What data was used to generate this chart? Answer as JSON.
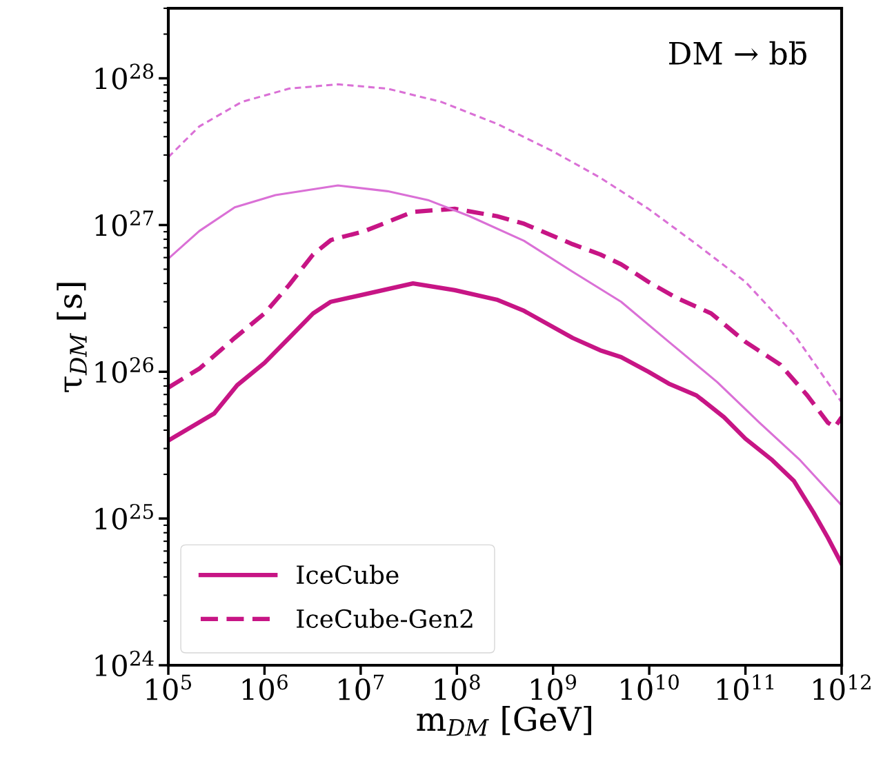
{
  "chart_data": {
    "type": "line",
    "xlabel": "m$_{DM}$ [GeV]",
    "ylabel": "τ$_{DM}$ [s]",
    "log": "xy",
    "xlim": [
      100000.0,
      1000000000000.0
    ],
    "ylim": [
      1e+24,
      3e+28
    ],
    "xticks": [
      {
        "value": 100000.0,
        "label": "10$^{5}$"
      },
      {
        "value": 1000000.0,
        "label": "10$^{6}$"
      },
      {
        "value": 10000000.0,
        "label": "10$^{7}$"
      },
      {
        "value": 100000000.0,
        "label": "10$^{8}$"
      },
      {
        "value": 1000000000.0,
        "label": "10$^{9}$"
      },
      {
        "value": 10000000000.0,
        "label": "10$^{10}$"
      },
      {
        "value": 100000000000.0,
        "label": "10$^{11}$"
      },
      {
        "value": 1000000000000.0,
        "label": "10$^{12}$"
      }
    ],
    "yticks": [
      {
        "value": 1e+24,
        "label": "10$^{24}$"
      },
      {
        "value": 1e+25,
        "label": "10$^{25}$"
      },
      {
        "value": 1e+26,
        "label": "10$^{26}$"
      },
      {
        "value": 1e+27,
        "label": "10$^{27}$"
      },
      {
        "value": 1e+28,
        "label": "10$^{28}$"
      }
    ],
    "annotations": [
      "DM → bb̄"
    ],
    "legend": "bottom left",
    "grid": false,
    "series": [
      {
        "name": "IceCube",
        "color": "#c71585",
        "line_style": "solid",
        "x": [
          100000.0,
          300000.0,
          520000.0,
          1000000.0,
          1800000.0,
          3200000.0,
          4900000.0,
          9500000.0,
          35000000.0,
          95000000.0,
          260000000.0,
          500000000.0,
          1600000000.0,
          3100000000.0,
          5100000000.0,
          9800000000.0,
          16000000000.0,
          31000000000.0,
          60000000000.0,
          100000000000.0,
          190000000000.0,
          320000000000.0,
          510000000000.0,
          720000000000.0,
          1000000000000.0
        ],
        "values": [
          3.4e+25,
          5.2e+25,
          8.1e+25,
          1.15e+26,
          1.7e+26,
          2.5e+26,
          3e+26,
          3.3e+26,
          4e+26,
          3.6e+26,
          3.1e+26,
          2.6e+26,
          1.7e+26,
          1.4e+26,
          1.26e+26,
          1e+26,
          8.3e+25,
          6.9e+25,
          4.9e+25,
          3.5e+25,
          2.5e+25,
          1.8e+25,
          1.1e+25,
          7.4e+24,
          4.9e+24
        ]
      },
      {
        "name": "IceCube-Gen2",
        "color": "#c71585",
        "line_style": "dashed",
        "x": [
          100000.0,
          210000.0,
          490000.0,
          1000000.0,
          1800000.0,
          3200000.0,
          4900000.0,
          11000000.0,
          35000000.0,
          95000000.0,
          260000000.0,
          500000000.0,
          1600000000.0,
          3100000000.0,
          5100000000.0,
          9800000000.0,
          19000000000.0,
          44000000000.0,
          100000000000.0,
          230000000000.0,
          440000000000.0,
          720000000000.0,
          850000000000.0,
          1000000000000.0
        ],
        "values": [
          7.8e+25,
          1.05e+26,
          1.7e+26,
          2.5e+26,
          3.9e+26,
          6.3e+26,
          7.9e+26,
          9.1e+26,
          1.23e+27,
          1.29e+27,
          1.15e+27,
          1.02e+27,
          7.4e+26,
          6.3e+26,
          5.4e+26,
          4.1e+26,
          3.2e+26,
          2.5e+26,
          1.6e+26,
          1.12e+26,
          6.9e+25,
          4.5e+25,
          4.2e+25,
          4.9e+25
        ]
      },
      {
        "color": "#da70d6",
        "line_style": "solid",
        "x": [
          100000.0,
          210000.0,
          490000.0,
          1300000.0,
          5800000.0,
          19000000.0,
          50000000.0,
          135000000.0,
          500000000.0,
          1600000000.0,
          5100000000.0,
          16000000000.0,
          51000000000.0,
          140000000000.0,
          370000000000.0,
          1000000000000.0
        ],
        "values": [
          5.9e+26,
          9.1e+26,
          1.32e+27,
          1.6e+27,
          1.86e+27,
          1.7e+27,
          1.48e+27,
          1.15e+27,
          7.8e+26,
          4.8e+26,
          3e+26,
          1.6e+26,
          8.5e+25,
          4.5e+25,
          2.5e+25,
          1.23e+25
        ]
      },
      {
        "color": "#da70d6",
        "line_style": "dashed",
        "x": [
          100000.0,
          210000.0,
          580000.0,
          1800000.0,
          5800000.0,
          19000000.0,
          69000000.0,
          260000000.0,
          980000000.0,
          3100000000.0,
          9800000000.0,
          31000000000.0,
          100000000000.0,
          320000000000.0,
          1000000000000.0
        ],
        "values": [
          2.9e+27,
          4.7e+27,
          6.9e+27,
          8.5e+27,
          9.1e+27,
          8.5e+27,
          6.9e+27,
          4.9e+27,
          3.2e+27,
          2.1e+27,
          1.29e+27,
          7.4e+26,
          4.1e+26,
          1.8e+26,
          6.2e+25
        ]
      }
    ]
  }
}
